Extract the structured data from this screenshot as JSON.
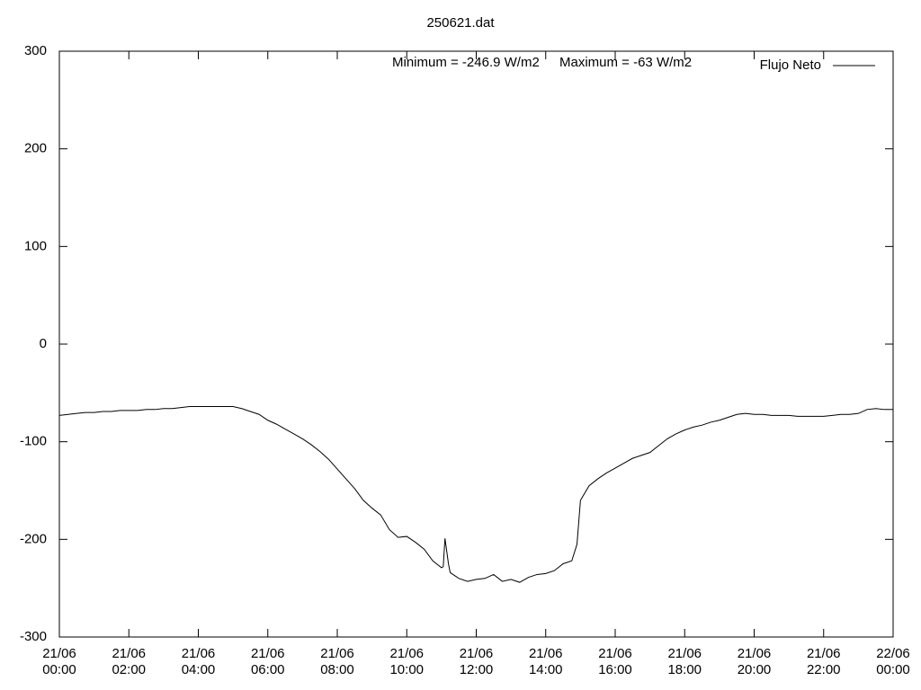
{
  "chart_data": {
    "type": "line",
    "title": "250621.dat",
    "annotations": [
      "Minimum = -246.9 W/m2",
      "Maximum = -63 W/m2"
    ],
    "xlim": [
      0,
      24
    ],
    "xticks": [
      {
        "value": 0,
        "label": "21/06\n00:00"
      },
      {
        "value": 2,
        "label": "21/06\n02:00"
      },
      {
        "value": 4,
        "label": "21/06\n04:00"
      },
      {
        "value": 6,
        "label": "21/06\n06:00"
      },
      {
        "value": 8,
        "label": "21/06\n08:00"
      },
      {
        "value": 10,
        "label": "21/06\n10:00"
      },
      {
        "value": 12,
        "label": "21/06\n12:00"
      },
      {
        "value": 14,
        "label": "21/06\n14:00"
      },
      {
        "value": 16,
        "label": "21/06\n16:00"
      },
      {
        "value": 18,
        "label": "21/06\n18:00"
      },
      {
        "value": 20,
        "label": "21/06\n20:00"
      },
      {
        "value": 22,
        "label": "21/06\n22:00"
      },
      {
        "value": 24,
        "label": "22/06\n00:00"
      }
    ],
    "ylim": [
      -300,
      300
    ],
    "yticks": [
      -300,
      -200,
      -100,
      0,
      100,
      200,
      300
    ],
    "legend": "top-right",
    "x": [
      0,
      0.25,
      0.5,
      0.75,
      1,
      1.25,
      1.5,
      1.75,
      2,
      2.25,
      2.5,
      2.75,
      3,
      3.25,
      3.5,
      3.75,
      4,
      4.25,
      4.5,
      4.75,
      5,
      5.25,
      5.5,
      5.75,
      6,
      6.25,
      6.5,
      6.75,
      7,
      7.25,
      7.5,
      7.75,
      8,
      8.25,
      8.5,
      8.75,
      9,
      9.25,
      9.5,
      9.75,
      10,
      10.25,
      10.5,
      10.75,
      11,
      11.05,
      11.1,
      11.2,
      11.25,
      11.5,
      11.75,
      12,
      12.25,
      12.5,
      12.75,
      13,
      13.25,
      13.5,
      13.75,
      14,
      14.25,
      14.5,
      14.75,
      14.9,
      15,
      15.25,
      15.5,
      15.75,
      16,
      16.25,
      16.5,
      16.75,
      17,
      17.25,
      17.5,
      17.75,
      18,
      18.25,
      18.5,
      18.75,
      19,
      19.25,
      19.5,
      19.75,
      20,
      20.25,
      20.5,
      20.75,
      21,
      21.25,
      21.5,
      21.75,
      22,
      22.25,
      22.5,
      22.75,
      23,
      23.25,
      23.5,
      23.75,
      24
    ],
    "series": [
      {
        "name": "Flujo Neto",
        "color": "#000000",
        "values": [
          -73,
          -72,
          -71,
          -70,
          -70,
          -69,
          -69,
          -68,
          -68,
          -68,
          -67,
          -67,
          -66,
          -66,
          -65,
          -64,
          -64,
          -64,
          -64,
          -64,
          -64,
          -66,
          -69,
          -72,
          -78,
          -82,
          -87,
          -92,
          -97,
          -103,
          -110,
          -118,
          -128,
          -138,
          -148,
          -160,
          -168,
          -175,
          -190,
          -198,
          -197,
          -203,
          -210,
          -222,
          -229,
          -228,
          -199,
          -225,
          -234,
          -240,
          -243,
          -241,
          -240,
          -236,
          -243,
          -241,
          -244,
          -239,
          -236,
          -235,
          -232,
          -225,
          -222,
          -205,
          -160,
          -145,
          -138,
          -132,
          -127,
          -122,
          -117,
          -114,
          -111,
          -104,
          -97,
          -92,
          -88,
          -85,
          -83,
          -80,
          -78,
          -75,
          -72,
          -71,
          -72,
          -72,
          -73,
          -73,
          -73,
          -74,
          -74,
          -74,
          -74,
          -73,
          -72,
          -72,
          -71,
          -67,
          -66,
          -67,
          -67
        ]
      }
    ]
  }
}
